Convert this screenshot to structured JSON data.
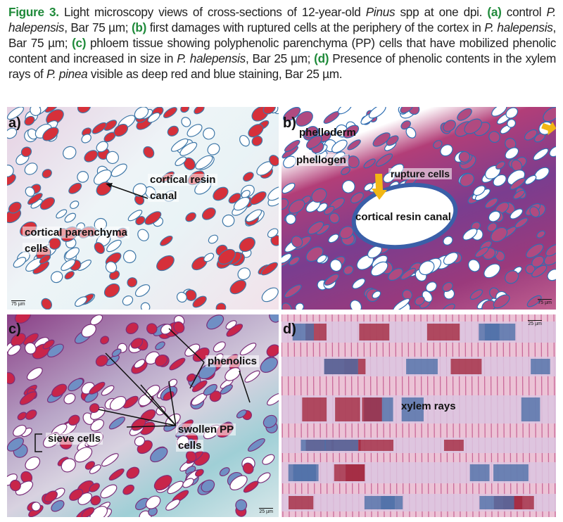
{
  "caption": {
    "figure_label": "Figure 3.",
    "intro": " Light microscopy views of cross-sections of 12-year-old ",
    "genus": "Pinus",
    "intro2": " spp at one dpi. ",
    "a_tag": "(a)",
    "a_text1": " control ",
    "a_species": "P. halepensis",
    "a_text2": ", Bar 75 µm; ",
    "b_tag": "(b)",
    "b_text1": " first damages with ruptured cells at the periphery of the cortex in ",
    "b_species": "P. halepensis",
    "b_text2": ", Bar 75 µm; ",
    "c_tag": "(c)",
    "c_text1": " phloem tissue showing polyphenolic parenchyma (PP) cells that have mobilized phenolic content and increased in size in ",
    "c_species": "P. halepensis",
    "c_text2": ", Bar 25 µm; ",
    "d_tag": "(d)",
    "d_text1": " Presence of phenolic contents in the xylem rays of ",
    "d_species": "P. pinea",
    "d_text2": " visible as deep red and blue staining, Bar 25 µm."
  },
  "panels": {
    "a": {
      "label": "a)",
      "annotations": [
        "cortical resin",
        "canal",
        "cortical parenchyma",
        "cells"
      ],
      "scale": "75 µm"
    },
    "b": {
      "label": "b)",
      "annotations": [
        "phelloderm",
        "phellogen",
        "rupture cells",
        "cortical resin canal"
      ],
      "scale": "75 µm"
    },
    "c": {
      "label": "c)",
      "annotations": [
        "phenolics",
        "swollen PP",
        "cells",
        "sieve cells"
      ],
      "scale": "25 µm"
    },
    "d": {
      "label": "d)",
      "annotations": [
        "xylem rays"
      ],
      "scale": "25 µm"
    }
  },
  "colors": {
    "caption_accent": "#1f8a3a",
    "stain_red": "#d6303a",
    "stain_blue": "#2f6fb3",
    "stain_magenta": "#b0306a",
    "stain_pink": "#e8a6c4",
    "arrow_yellow": "#f2b714"
  }
}
